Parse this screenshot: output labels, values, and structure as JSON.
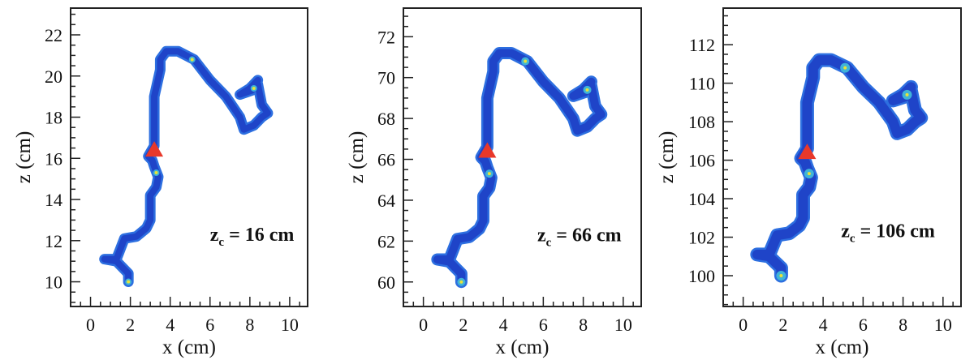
{
  "chart_data": [
    {
      "type": "heatmap",
      "xlabel": "x (cm)",
      "ylabel": "z (cm)",
      "xlim": [
        -1,
        10.9
      ],
      "ylim": [
        8.8,
        23.3
      ],
      "xticks": [
        "0",
        "2",
        "4",
        "6",
        "8",
        "10"
      ],
      "yticks": [
        "10",
        "12",
        "14",
        "16",
        "18",
        "20",
        "22"
      ],
      "annotation": {
        "prefix": "z",
        "sub": "c",
        "text": " = 16 cm",
        "x": 6.0,
        "z": 12.0
      },
      "vertex": {
        "x": 3.2,
        "z": 16.4
      },
      "z_offset": 0
    },
    {
      "type": "heatmap",
      "xlabel": "x (cm)",
      "ylabel": "z (cm)",
      "xlim": [
        -1,
        10.9
      ],
      "ylim": [
        58.8,
        73.4
      ],
      "xticks": [
        "0",
        "2",
        "4",
        "6",
        "8",
        "10"
      ],
      "yticks": [
        "60",
        "62",
        "64",
        "66",
        "68",
        "70",
        "72"
      ],
      "annotation": {
        "prefix": "z",
        "sub": "c",
        "text": " = 66 cm",
        "x": 5.7,
        "z": 62.0
      },
      "vertex": {
        "x": 3.2,
        "z": 66.4
      },
      "z_offset": 50
    },
    {
      "type": "heatmap",
      "xlabel": "x (cm)",
      "ylabel": "z (cm)",
      "xlim": [
        -1,
        10.9
      ],
      "ylim": [
        98.4,
        113.9
      ],
      "xticks": [
        "0",
        "2",
        "4",
        "6",
        "8",
        "10"
      ],
      "yticks": [
        "100",
        "102",
        "104",
        "106",
        "108",
        "110",
        "112"
      ],
      "annotation": {
        "prefix": "z",
        "sub": "c",
        "text": " = 106 cm",
        "x": 4.9,
        "z": 102.0
      },
      "vertex": {
        "x": 3.2,
        "z": 106.4
      },
      "z_offset": 90
    }
  ],
  "track_base": [
    [
      1.9,
      10.0
    ],
    [
      1.9,
      10.4
    ],
    [
      1.5,
      10.8
    ],
    [
      1.3,
      11.0
    ],
    [
      0.7,
      11.1
    ],
    [
      1.3,
      11.1
    ],
    [
      1.5,
      11.6
    ],
    [
      1.7,
      12.1
    ],
    [
      2.3,
      12.2
    ],
    [
      2.8,
      12.6
    ],
    [
      3.0,
      13.0
    ],
    [
      3.0,
      14.2
    ],
    [
      3.3,
      14.6
    ],
    [
      3.4,
      15.1
    ],
    [
      3.2,
      15.6
    ],
    [
      3.1,
      15.9
    ],
    [
      2.9,
      16.1
    ],
    [
      3.2,
      16.6
    ],
    [
      3.2,
      17.5
    ],
    [
      3.2,
      19.0
    ],
    [
      3.5,
      20.3
    ],
    [
      3.5,
      20.8
    ],
    [
      3.8,
      21.2
    ],
    [
      4.4,
      21.2
    ],
    [
      5.2,
      20.8
    ],
    [
      6.0,
      19.8
    ],
    [
      6.8,
      19.0
    ],
    [
      7.5,
      18.0
    ],
    [
      7.7,
      17.4
    ],
    [
      8.2,
      17.6
    ],
    [
      8.6,
      18.0
    ],
    [
      8.9,
      18.2
    ],
    [
      8.6,
      18.6
    ],
    [
      8.4,
      19.6
    ],
    [
      8.1,
      19.3
    ],
    [
      7.5,
      19.1
    ],
    [
      8.0,
      19.4
    ],
    [
      8.4,
      19.8
    ]
  ],
  "hotspots_base": [
    [
      1.9,
      10.0
    ],
    [
      8.2,
      19.4
    ],
    [
      5.1,
      20.8
    ],
    [
      3.3,
      15.3
    ]
  ],
  "colors": {
    "track": "#1f44c8",
    "track_edge": "#2d6fe0",
    "hot": "#e8e23a",
    "warm": "#3fb4d8",
    "vertex": "#e8382a"
  }
}
